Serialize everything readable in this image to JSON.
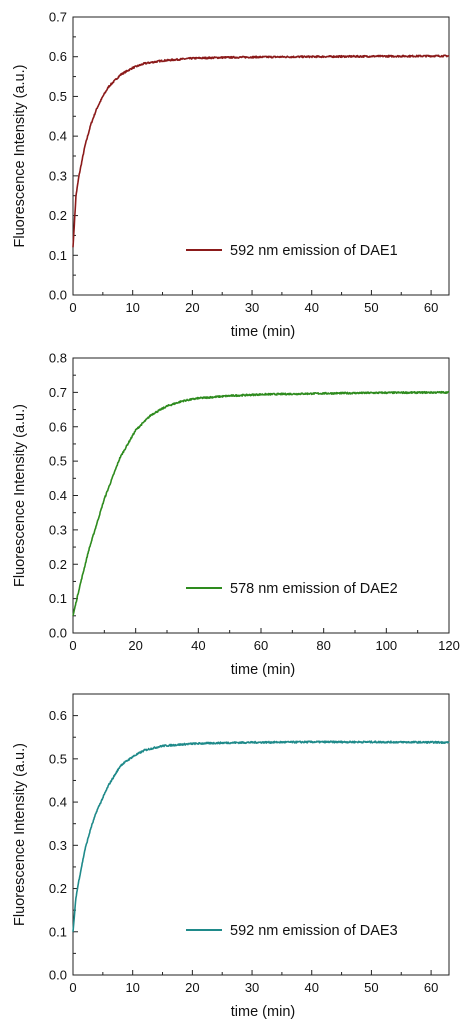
{
  "chart_data": [
    {
      "type": "line",
      "xlabel": "time (min)",
      "ylabel": "Fluorescence Intensity (a.u.)",
      "xlim": [
        0,
        63
      ],
      "ylim": [
        0,
        0.7
      ],
      "xticks": [
        0,
        10,
        20,
        30,
        40,
        50,
        60
      ],
      "yticks": [
        0.0,
        0.1,
        0.2,
        0.3,
        0.4,
        0.5,
        0.6,
        0.7
      ],
      "xtick_labels": [
        "0",
        "10",
        "20",
        "30",
        "40",
        "50",
        "60"
      ],
      "ytick_labels": [
        "0.0",
        "0.1",
        "0.2",
        "0.3",
        "0.4",
        "0.5",
        "0.6",
        "0.7"
      ],
      "legend_position": "lower-right",
      "series": [
        {
          "name": "592 nm emission of DAE1",
          "color": "#8b1a1a",
          "x": [
            0,
            0.5,
            1,
            2,
            3,
            4,
            5,
            6,
            8,
            10,
            12,
            15,
            20,
            25,
            30,
            40,
            50,
            63
          ],
          "y": [
            0.12,
            0.25,
            0.3,
            0.375,
            0.43,
            0.47,
            0.5,
            0.525,
            0.555,
            0.572,
            0.583,
            0.59,
            0.596,
            0.598,
            0.599,
            0.6,
            0.601,
            0.602
          ]
        }
      ]
    },
    {
      "type": "line",
      "xlabel": "time (min)",
      "ylabel": "Fluorescence Intensity (a.u.)",
      "xlim": [
        0,
        120
      ],
      "ylim": [
        0,
        0.8
      ],
      "xticks": [
        0,
        20,
        40,
        60,
        80,
        100,
        120
      ],
      "yticks": [
        0.0,
        0.1,
        0.2,
        0.3,
        0.4,
        0.5,
        0.6,
        0.7,
        0.8
      ],
      "xtick_labels": [
        "0",
        "20",
        "40",
        "60",
        "80",
        "100",
        "120"
      ],
      "ytick_labels": [
        "0.0",
        "0.1",
        "0.2",
        "0.3",
        "0.4",
        "0.5",
        "0.6",
        "0.7",
        "0.8"
      ],
      "legend_position": "lower-right",
      "series": [
        {
          "name": "578 nm emission of DAE2",
          "color": "#2e8b1e",
          "x": [
            0,
            1,
            2,
            5,
            8,
            10,
            15,
            20,
            25,
            30,
            35,
            40,
            50,
            60,
            80,
            100,
            120
          ],
          "y": [
            0.05,
            0.09,
            0.13,
            0.24,
            0.33,
            0.39,
            0.51,
            0.59,
            0.635,
            0.66,
            0.675,
            0.683,
            0.69,
            0.694,
            0.697,
            0.699,
            0.7
          ]
        }
      ]
    },
    {
      "type": "line",
      "xlabel": "time (min)",
      "ylabel": "Fluorescence Intensity (a.u.)",
      "xlim": [
        0,
        63
      ],
      "ylim": [
        0,
        0.65
      ],
      "xticks": [
        0,
        10,
        20,
        30,
        40,
        50,
        60
      ],
      "yticks": [
        0.0,
        0.1,
        0.2,
        0.3,
        0.4,
        0.5,
        0.6
      ],
      "xtick_labels": [
        "0",
        "10",
        "20",
        "30",
        "40",
        "50",
        "60"
      ],
      "ytick_labels": [
        "0.0",
        "0.1",
        "0.2",
        "0.3",
        "0.4",
        "0.5",
        "0.6"
      ],
      "legend_position": "lower-right",
      "series": [
        {
          "name": "592 nm emission of DAE3",
          "color": "#1f8a8a",
          "x": [
            0,
            0.5,
            1,
            2,
            3,
            4,
            6,
            8,
            10,
            12,
            15,
            20,
            25,
            30,
            40,
            50,
            63
          ],
          "y": [
            0.1,
            0.18,
            0.22,
            0.29,
            0.34,
            0.38,
            0.44,
            0.485,
            0.505,
            0.52,
            0.53,
            0.535,
            0.537,
            0.538,
            0.539,
            0.539,
            0.538
          ]
        }
      ]
    }
  ]
}
